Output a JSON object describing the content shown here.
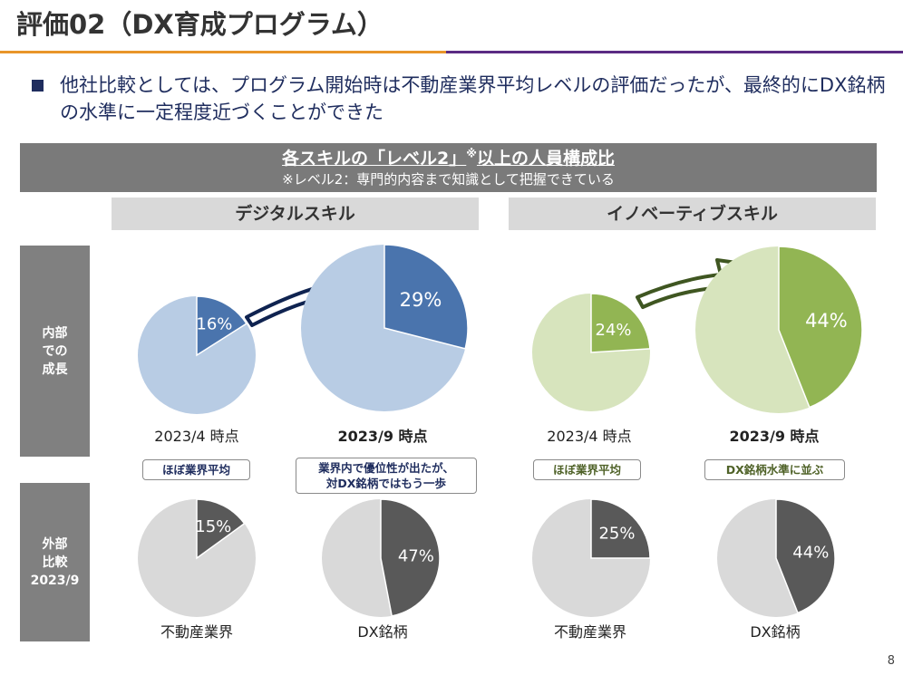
{
  "slide": {
    "title": "評価02（DX育成プログラム）",
    "bullet": "他社比較としては、プログラム開始時は不動産業界平均レベルの評価だったが、最終的にDX銘柄の水準に一定程度近づくことができた",
    "page_number": "8"
  },
  "banner": {
    "title_pre": "各スキルの「レベル2」",
    "title_mark": "※",
    "title_post": "以上の人員構成比",
    "note": "※レベル2：専門的内容まで知識として把握できている"
  },
  "columns": {
    "digital": "デジタルスキル",
    "innovative": "イノベーティブスキル"
  },
  "rows": {
    "internal": [
      "内部",
      "での",
      "成長"
    ],
    "external": [
      "外部",
      "比較",
      "2023/9"
    ]
  },
  "callouts": {
    "digital_apr": "ほぼ業界平均",
    "digital_sep": [
      "業界内で優位性が出たが、",
      "対DX銘柄ではもう一歩"
    ],
    "innov_apr": "ほぼ業界平均",
    "innov_sep": "DX銘柄水準に並ぶ"
  },
  "colors": {
    "digital_dark": "#4a74ad",
    "digital_light": "#b8cce4",
    "innov_dark": "#92b553",
    "innov_light": "#d7e4bd",
    "ext_dark": "#595959",
    "ext_light": "#d9d9d9",
    "digital_arrow": "#0f2350",
    "innov_arrow": "#3f5621",
    "digital_text": "#1f2d5e",
    "innov_text": "#4f6228"
  },
  "chart_data": [
    {
      "type": "pie",
      "id": "digital_internal_apr",
      "label": "2023/4 時点",
      "label_bold": false,
      "value": 16,
      "data_label": "16%",
      "color": "digital_dark",
      "rest_color": "digital_light"
    },
    {
      "type": "pie",
      "id": "digital_internal_sep",
      "label": "2023/9 時点",
      "label_bold": true,
      "value": 29,
      "data_label": "29%",
      "color": "digital_dark",
      "rest_color": "digital_light"
    },
    {
      "type": "pie",
      "id": "innov_internal_apr",
      "label": "2023/4 時点",
      "label_bold": false,
      "value": 24,
      "data_label": "24%",
      "color": "innov_dark",
      "rest_color": "innov_light"
    },
    {
      "type": "pie",
      "id": "innov_internal_sep",
      "label": "2023/9 時点",
      "label_bold": true,
      "value": 44,
      "data_label": "44%",
      "color": "innov_dark",
      "rest_color": "innov_light"
    },
    {
      "type": "pie",
      "id": "digital_external_industry",
      "label": "不動産業界",
      "label_bold": false,
      "value": 15,
      "data_label": "15%",
      "color": "ext_dark",
      "rest_color": "ext_light"
    },
    {
      "type": "pie",
      "id": "digital_external_dx",
      "label": "DX銘柄",
      "label_bold": false,
      "value": 47,
      "data_label": "47%",
      "color": "ext_dark",
      "rest_color": "ext_light"
    },
    {
      "type": "pie",
      "id": "innov_external_industry",
      "label": "不動産業界",
      "label_bold": false,
      "value": 25,
      "data_label": "25%",
      "color": "ext_dark",
      "rest_color": "ext_light"
    },
    {
      "type": "pie",
      "id": "innov_external_dx",
      "label": "DX銘柄",
      "label_bold": false,
      "value": 44,
      "data_label": "44%",
      "color": "ext_dark",
      "rest_color": "ext_light"
    }
  ]
}
